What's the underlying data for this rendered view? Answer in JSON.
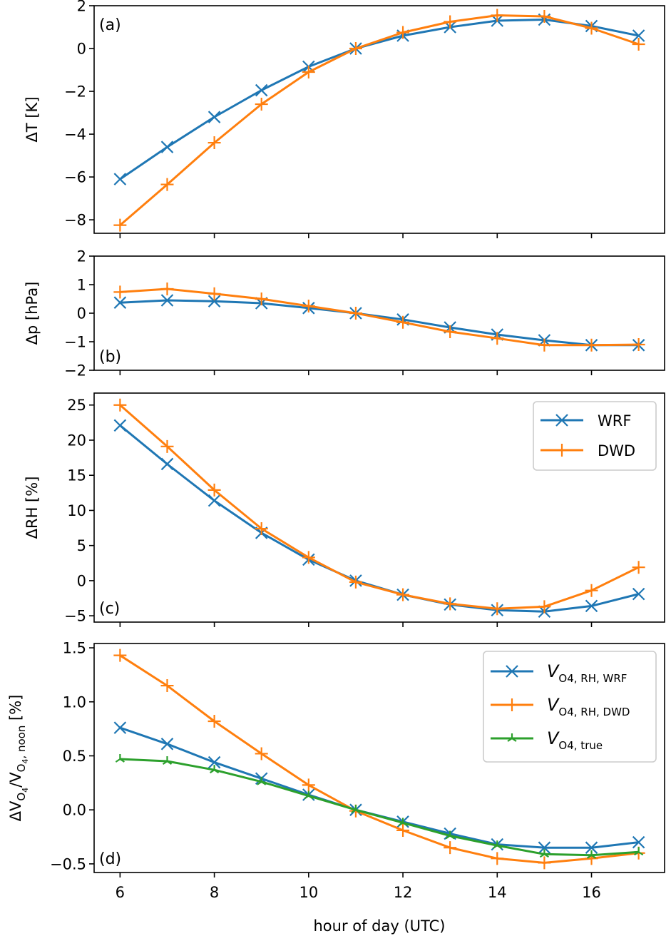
{
  "chart_data": [
    {
      "id": "a",
      "type": "line",
      "panel_label": "(a)",
      "ylabel": "ΔT [K]",
      "xlabel": "",
      "x": [
        6,
        7,
        8,
        9,
        10,
        11,
        12,
        13,
        14,
        15,
        16,
        17
      ],
      "xlim": [
        5.45,
        17.55
      ],
      "ylim": [
        -8.63,
        2.0
      ],
      "yticks": [
        -8,
        -6,
        -4,
        -2,
        0,
        2
      ],
      "ytick_labels": [
        "−8",
        "−6",
        "−4",
        "−2",
        "0",
        "2"
      ],
      "xticks": [
        6,
        8,
        10,
        12,
        14,
        16
      ],
      "show_xtick_labels": false,
      "grid": false,
      "legend": null,
      "series": [
        {
          "name": "WRF",
          "color": "#1f77b4",
          "marker": "x",
          "values": [
            -6.1,
            -4.6,
            -3.2,
            -1.95,
            -0.85,
            0.0,
            0.6,
            1.0,
            1.3,
            1.35,
            1.05,
            0.6
          ]
        },
        {
          "name": "DWD",
          "color": "#ff7f0e",
          "marker": "+",
          "values": [
            -8.25,
            -6.35,
            -4.4,
            -2.6,
            -1.1,
            0.0,
            0.75,
            1.25,
            1.55,
            1.5,
            0.95,
            0.2
          ]
        }
      ]
    },
    {
      "id": "b",
      "type": "line",
      "panel_label": "(b)",
      "ylabel": "Δp [hPa]",
      "xlabel": "",
      "x": [
        6,
        7,
        8,
        9,
        10,
        11,
        12,
        13,
        14,
        15,
        16,
        17
      ],
      "xlim": [
        5.45,
        17.55
      ],
      "ylim": [
        -2.0,
        2.0
      ],
      "yticks": [
        -2,
        -1,
        0,
        1,
        2
      ],
      "ytick_labels": [
        "−2",
        "−1",
        "0",
        "1",
        "2"
      ],
      "xticks": [
        6,
        8,
        10,
        12,
        14,
        16
      ],
      "show_xtick_labels": false,
      "grid": false,
      "legend": null,
      "series": [
        {
          "name": "WRF",
          "color": "#1f77b4",
          "marker": "x",
          "values": [
            0.37,
            0.45,
            0.42,
            0.35,
            0.18,
            0.0,
            -0.22,
            -0.5,
            -0.75,
            -0.95,
            -1.12,
            -1.12
          ]
        },
        {
          "name": "DWD",
          "color": "#ff7f0e",
          "marker": "+",
          "values": [
            0.74,
            0.85,
            0.68,
            0.5,
            0.25,
            0.0,
            -0.32,
            -0.65,
            -0.88,
            -1.12,
            -1.12,
            -1.1
          ]
        }
      ]
    },
    {
      "id": "c",
      "type": "line",
      "panel_label": "(c)",
      "ylabel": "ΔRH [%]",
      "xlabel": "",
      "x": [
        6,
        7,
        8,
        9,
        10,
        11,
        12,
        13,
        14,
        15,
        16,
        17
      ],
      "xlim": [
        5.45,
        17.55
      ],
      "ylim": [
        -5.9,
        26.7
      ],
      "yticks": [
        -5,
        0,
        5,
        10,
        15,
        20,
        25
      ],
      "ytick_labels": [
        "−5",
        "0",
        "5",
        "10",
        "15",
        "20",
        "25"
      ],
      "xticks": [
        6,
        8,
        10,
        12,
        14,
        16
      ],
      "show_xtick_labels": false,
      "grid": false,
      "legend": {
        "placement": "top-right",
        "entries": [
          {
            "label": "WRF",
            "sub": "",
            "color": "#1f77b4",
            "marker": "x"
          },
          {
            "label": "DWD",
            "sub": "",
            "color": "#ff7f0e",
            "marker": "+"
          }
        ]
      },
      "series": [
        {
          "name": "WRF",
          "color": "#1f77b4",
          "marker": "x",
          "values": [
            22.1,
            16.6,
            11.4,
            6.8,
            3.0,
            0.0,
            -2.0,
            -3.4,
            -4.2,
            -4.4,
            -3.6,
            -1.9
          ]
        },
        {
          "name": "DWD",
          "color": "#ff7f0e",
          "marker": "+",
          "values": [
            25.0,
            19.1,
            12.9,
            7.4,
            3.3,
            -0.2,
            -2.0,
            -3.3,
            -4.0,
            -3.7,
            -1.4,
            1.9
          ]
        }
      ]
    },
    {
      "id": "d",
      "type": "line",
      "panel_label": "(d)",
      "ylabel": "ΔV_O4/V_O4,noon [%]",
      "ylabel_parts": {
        "delta": "ΔV",
        "sub1": "O",
        "sub1b": "4",
        "slash": "/V",
        "sub2": "O",
        "sub2b": "4",
        "sub2c": ", noon",
        "unit": " [%]"
      },
      "xlabel": "hour of day (UTC)",
      "x": [
        6,
        7,
        8,
        9,
        10,
        11,
        12,
        13,
        14,
        15,
        16,
        17
      ],
      "xlim": [
        5.45,
        17.55
      ],
      "ylim": [
        -0.58,
        1.54
      ],
      "yticks": [
        -0.5,
        0.0,
        0.5,
        1.0,
        1.5
      ],
      "ytick_labels": [
        "−0.5",
        "0.0",
        "0.5",
        "1.0",
        "1.5"
      ],
      "xticks": [
        6,
        8,
        10,
        12,
        14,
        16
      ],
      "xtick_labels": [
        "6",
        "8",
        "10",
        "12",
        "14",
        "16"
      ],
      "show_xtick_labels": true,
      "grid": false,
      "legend": {
        "placement": "top-right",
        "entries": [
          {
            "label": "V",
            "sub": "O4, RH, WRF",
            "color": "#1f77b4",
            "marker": "x"
          },
          {
            "label": "V",
            "sub": "O4, RH, DWD",
            "color": "#ff7f0e",
            "marker": "+"
          },
          {
            "label": "V",
            "sub": "O4, true",
            "color": "#2ca02c",
            "marker": "tri"
          }
        ]
      },
      "series": [
        {
          "name": "V_O4,RH,WRF",
          "color": "#1f77b4",
          "marker": "x",
          "values": [
            0.76,
            0.61,
            0.44,
            0.29,
            0.14,
            0.0,
            -0.11,
            -0.22,
            -0.32,
            -0.35,
            -0.35,
            -0.3
          ]
        },
        {
          "name": "V_O4,RH,DWD",
          "color": "#ff7f0e",
          "marker": "+",
          "values": [
            1.43,
            1.15,
            0.82,
            0.52,
            0.23,
            -0.01,
            -0.19,
            -0.35,
            -0.45,
            -0.49,
            -0.45,
            -0.4
          ]
        },
        {
          "name": "V_O4,true",
          "color": "#2ca02c",
          "marker": "tri",
          "values": [
            0.47,
            0.45,
            0.37,
            0.26,
            0.13,
            0.0,
            -0.12,
            -0.24,
            -0.33,
            -0.41,
            -0.42,
            -0.39
          ]
        }
      ]
    }
  ]
}
